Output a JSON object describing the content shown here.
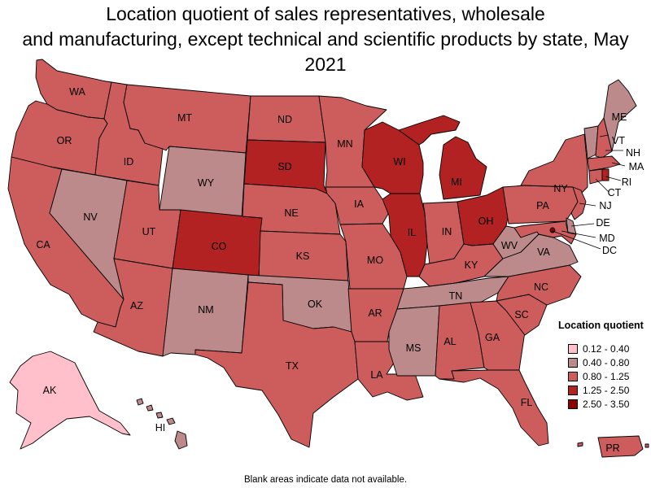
{
  "title_line1": "Location quotient of sales representatives, wholesale",
  "title_line2": "and manufacturing, except technical and scientific products by state, May 2021",
  "legend": {
    "title": "Location quotient",
    "items": [
      {
        "label": "0.12 - 0.40",
        "color": "#ffc0cb"
      },
      {
        "label": "0.40 - 0.80",
        "color": "#bc8a8a"
      },
      {
        "label": "0.80 - 1.25",
        "color": "#cd5c5c"
      },
      {
        "label": "1.25 - 2.50",
        "color": "#b22222"
      },
      {
        "label": "2.50 - 3.50",
        "color": "#8b0000"
      }
    ]
  },
  "footnote": "Blank areas indicate data not available.",
  "states": {
    "WA": {
      "label": "WA",
      "class": 2
    },
    "OR": {
      "label": "OR",
      "class": 2
    },
    "CA": {
      "label": "CA",
      "class": 2
    },
    "ID": {
      "label": "ID",
      "class": 2
    },
    "NV": {
      "label": "NV",
      "class": 1
    },
    "MT": {
      "label": "MT",
      "class": 2
    },
    "WY": {
      "label": "WY",
      "class": 1
    },
    "UT": {
      "label": "UT",
      "class": 2
    },
    "AZ": {
      "label": "AZ",
      "class": 2
    },
    "CO": {
      "label": "CO",
      "class": 3
    },
    "NM": {
      "label": "NM",
      "class": 1
    },
    "ND": {
      "label": "ND",
      "class": 2
    },
    "SD": {
      "label": "SD",
      "class": 3
    },
    "NE": {
      "label": "NE",
      "class": 2
    },
    "KS": {
      "label": "KS",
      "class": 2
    },
    "OK": {
      "label": "OK",
      "class": 1
    },
    "TX": {
      "label": "TX",
      "class": 2
    },
    "MN": {
      "label": "MN",
      "class": 2
    },
    "IA": {
      "label": "IA",
      "class": 2
    },
    "MO": {
      "label": "MO",
      "class": 2
    },
    "AR": {
      "label": "AR",
      "class": 2
    },
    "LA": {
      "label": "LA",
      "class": 2
    },
    "WI": {
      "label": "WI",
      "class": 3
    },
    "IL": {
      "label": "IL",
      "class": 3
    },
    "MI": {
      "label": "MI",
      "class": 3
    },
    "IN": {
      "label": "IN",
      "class": 2
    },
    "OH": {
      "label": "OH",
      "class": 3
    },
    "KY": {
      "label": "KY",
      "class": 2
    },
    "TN": {
      "label": "TN",
      "class": 1
    },
    "MS": {
      "label": "MS",
      "class": 1
    },
    "AL": {
      "label": "AL",
      "class": 2
    },
    "GA": {
      "label": "GA",
      "class": 2
    },
    "FL": {
      "label": "FL",
      "class": 2
    },
    "SC": {
      "label": "SC",
      "class": 2
    },
    "NC": {
      "label": "NC",
      "class": 2
    },
    "VA": {
      "label": "VA",
      "class": 1
    },
    "WV": {
      "label": "WV",
      "class": 1
    },
    "PA": {
      "label": "PA",
      "class": 2
    },
    "NY": {
      "label": "NY",
      "class": 2
    },
    "VT": {
      "label": "VT",
      "class": 1
    },
    "NH": {
      "label": "NH",
      "class": 2
    },
    "ME": {
      "label": "ME",
      "class": 1
    },
    "MA": {
      "label": "MA",
      "class": 2
    },
    "RI": {
      "label": "RI",
      "class": 3
    },
    "CT": {
      "label": "CT",
      "class": 2
    },
    "NJ": {
      "label": "NJ",
      "class": 2
    },
    "DE": {
      "label": "DE",
      "class": 1
    },
    "MD": {
      "label": "MD",
      "class": 2
    },
    "DC": {
      "label": "DC",
      "class": 4
    },
    "AK": {
      "label": "AK",
      "class": 0
    },
    "HI": {
      "label": "HI",
      "class": 1
    },
    "PR": {
      "label": "PR",
      "class": 2
    }
  }
}
